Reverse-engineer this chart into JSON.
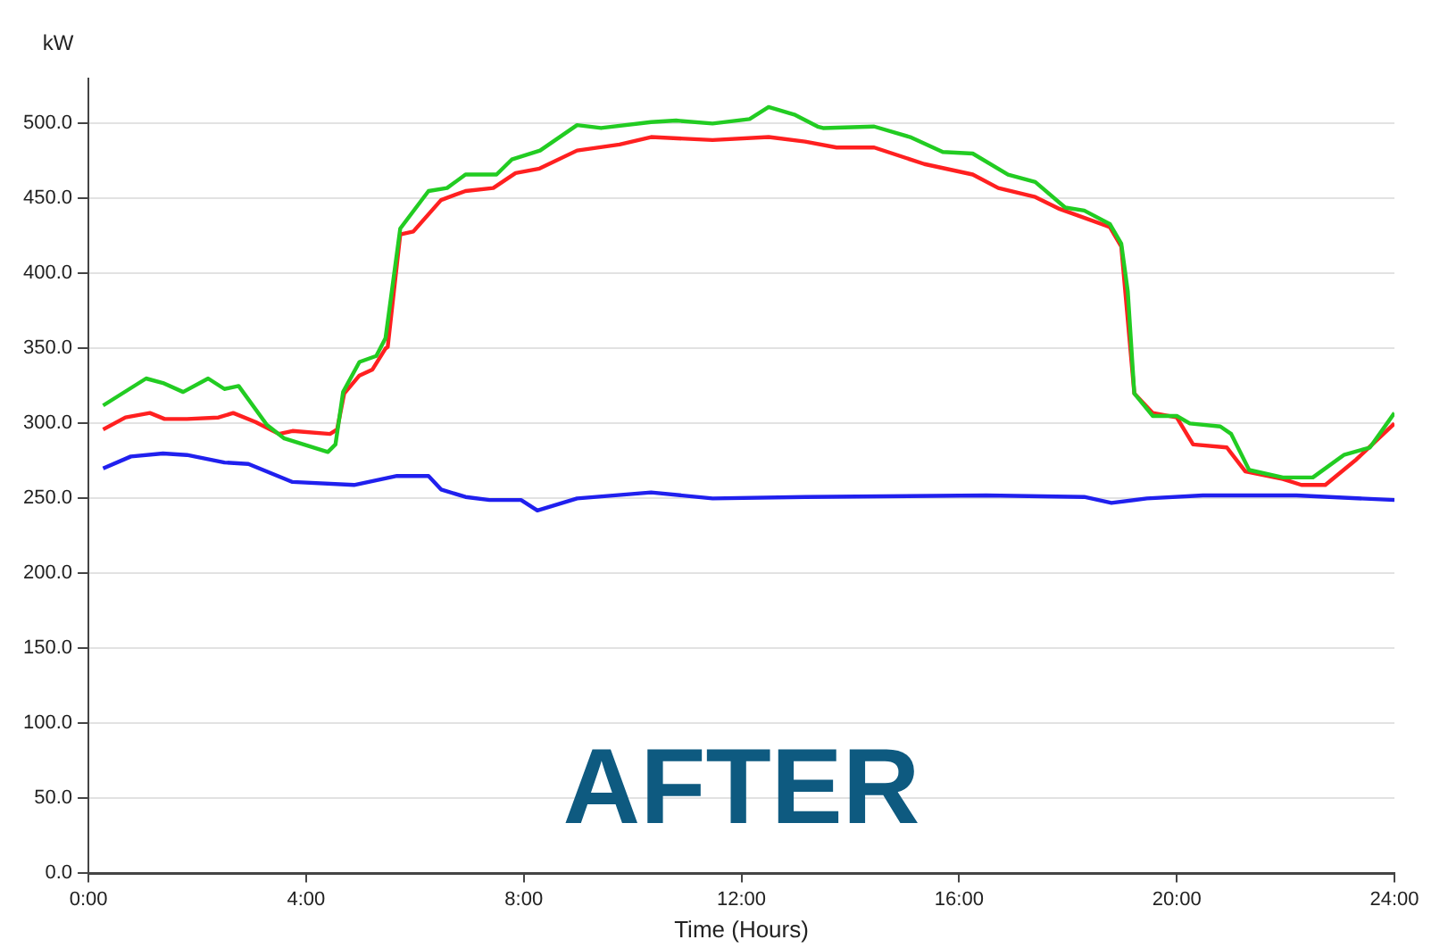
{
  "chart_data": {
    "type": "line",
    "xlabel": "Time (Hours)",
    "ylabel": "kW",
    "annotations": [
      "AFTER"
    ],
    "xlim": [
      0,
      24
    ],
    "ylim": [
      0,
      530
    ],
    "xticks": [
      {
        "value": 0,
        "label": "0:00"
      },
      {
        "value": 4,
        "label": "4:00"
      },
      {
        "value": 8,
        "label": "8:00"
      },
      {
        "value": 12,
        "label": "12:00"
      },
      {
        "value": 16,
        "label": "16:00"
      },
      {
        "value": 20,
        "label": "20:00"
      },
      {
        "value": 24,
        "label": "24:00"
      }
    ],
    "yticks": [
      {
        "value": 0,
        "label": "0.0"
      },
      {
        "value": 50,
        "label": "50.0"
      },
      {
        "value": 100,
        "label": "100.0"
      },
      {
        "value": 150,
        "label": "150.0"
      },
      {
        "value": 200,
        "label": "200.0"
      },
      {
        "value": 250,
        "label": "250.0"
      },
      {
        "value": 300,
        "label": "300.0"
      },
      {
        "value": 350,
        "label": "350.0"
      },
      {
        "value": 400,
        "label": "400.0"
      },
      {
        "value": 450,
        "label": "450.0"
      },
      {
        "value": 500,
        "label": "500.0"
      }
    ],
    "grid": "y",
    "legend": false,
    "marker": "none",
    "line_style": "solid",
    "series": [
      {
        "color": "#22cc22",
        "x": [
          0.27,
          1.06,
          1.37,
          1.74,
          2.2,
          2.5,
          2.76,
          3.28,
          3.6,
          4.4,
          4.54,
          4.68,
          4.98,
          5.29,
          5.46,
          5.73,
          6.25,
          6.59,
          6.93,
          7.5,
          7.78,
          8.3,
          8.98,
          9.42,
          10.34,
          10.8,
          11.47,
          12.15,
          12.5,
          12.97,
          13.4,
          13.5,
          14.44,
          15.1,
          15.7,
          16.25,
          16.9,
          17.4,
          17.95,
          18.3,
          18.77,
          18.98,
          19.1,
          19.22,
          19.56,
          20.0,
          20.24,
          20.8,
          21.0,
          21.33,
          21.95,
          22.5,
          23.07,
          23.55,
          24
        ],
        "values": [
          312,
          330,
          327,
          321,
          330,
          323,
          325,
          299,
          290,
          281,
          286,
          321,
          341,
          345,
          357,
          430,
          455,
          457,
          466,
          466,
          476,
          482,
          499,
          497,
          501,
          502,
          500,
          503,
          511,
          506,
          498,
          497,
          498,
          491,
          481,
          480,
          466,
          461,
          444,
          442,
          433,
          420,
          388,
          320,
          305,
          305,
          300,
          298,
          293,
          269,
          264,
          264,
          279,
          284,
          307
        ]
      },
      {
        "color": "#ff2020",
        "x": [
          0.27,
          0.68,
          1.13,
          1.4,
          1.81,
          2.39,
          2.66,
          3.07,
          3.5,
          3.75,
          4.44,
          4.57,
          4.7,
          4.98,
          5.22,
          5.46,
          5.5,
          5.73,
          5.97,
          6.48,
          6.93,
          7.44,
          7.85,
          8.29,
          8.98,
          9.76,
          10.34,
          11.47,
          12.5,
          13.17,
          13.75,
          14.44,
          15.36,
          16.25,
          16.72,
          17.4,
          17.85,
          18.77,
          18.98,
          19.22,
          19.56,
          20.0,
          20.3,
          20.92,
          21.26,
          21.95,
          22.29,
          22.73,
          23.3,
          24
        ],
        "values": [
          296,
          304,
          307,
          303,
          303,
          304,
          307,
          301,
          293,
          295,
          293,
          296,
          320,
          332,
          336,
          350,
          351,
          426,
          428,
          449,
          455,
          457,
          467,
          470,
          482,
          486,
          491,
          489,
          491,
          488,
          484,
          484,
          473,
          466,
          457,
          451,
          443,
          431,
          418,
          320,
          307,
          304,
          286,
          284,
          268,
          263,
          259,
          259,
          276,
          300
        ]
      },
      {
        "color": "#2020ee",
        "x": [
          0.27,
          0.78,
          1.37,
          1.81,
          2.5,
          2.94,
          3.75,
          4.88,
          5.67,
          6.25,
          6.48,
          6.93,
          7.37,
          7.95,
          8.25,
          8.98,
          10.34,
          11.47,
          13.17,
          16.5,
          18.3,
          18.8,
          19.45,
          20.48,
          22.2,
          24
        ],
        "values": [
          270,
          278,
          280,
          279,
          274,
          273,
          261,
          259,
          265,
          265,
          256,
          251,
          249,
          249,
          242,
          250,
          254,
          250,
          251,
          252,
          251,
          247,
          250,
          252,
          252,
          249
        ]
      }
    ]
  }
}
